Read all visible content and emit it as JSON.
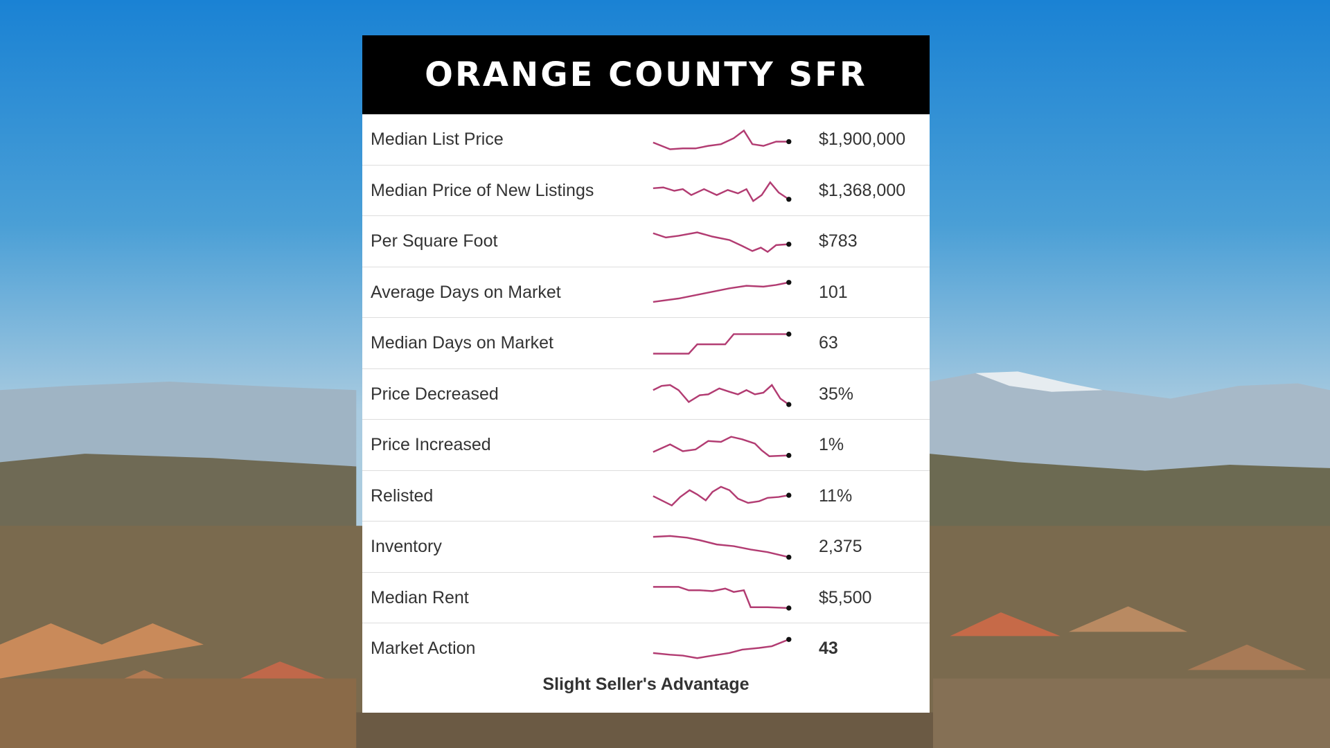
{
  "header": {
    "title": "ORANGE COUNTY SFR"
  },
  "table": {
    "rows": [
      {
        "label": "Median List Price",
        "value": "$1,900,000"
      },
      {
        "label": "Median Price of New Listings",
        "value": "$1,368,000"
      },
      {
        "label": "Per Square Foot",
        "value": "$783"
      },
      {
        "label": "Average Days on Market",
        "value": "101"
      },
      {
        "label": "Median Days on Market",
        "value": "63"
      },
      {
        "label": "Price Decreased",
        "value": "35%"
      },
      {
        "label": "Price Increased",
        "value": "1%"
      },
      {
        "label": "Relisted",
        "value": "11%"
      },
      {
        "label": "Inventory",
        "value": "2,375"
      },
      {
        "label": "Median Rent",
        "value": "$5,500"
      },
      {
        "label": "Market Action",
        "value": "43"
      }
    ]
  },
  "footer": {
    "note": "Slight Seller's Advantage"
  }
}
